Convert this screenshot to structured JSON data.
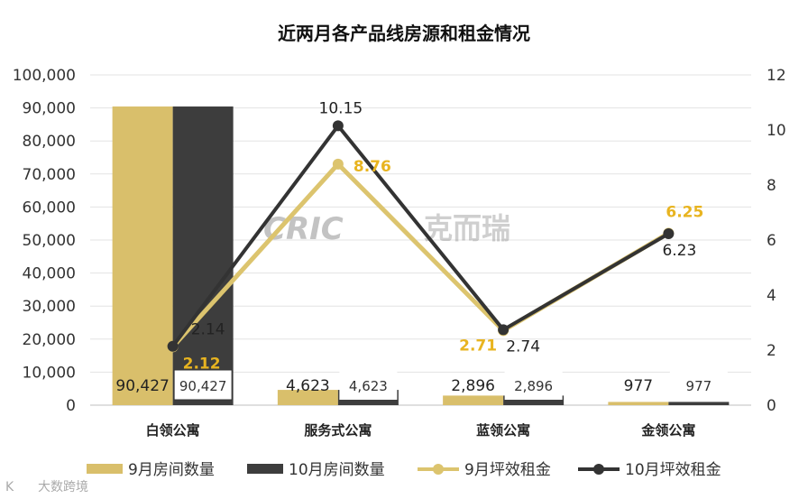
{
  "chart_data": {
    "type": "bar",
    "title": "近两月各产品线房源和租金情况",
    "categories": [
      "白领公寓",
      "服务式公寓",
      "蓝领公寓",
      "金领公寓"
    ],
    "ylim": [
      0,
      100000
    ],
    "y_ticks": [
      "0",
      "10,000",
      "20,000",
      "30,000",
      "40,000",
      "50,000",
      "60,000",
      "70,000",
      "80,000",
      "90,000",
      "100,000"
    ],
    "y2lim": [
      0,
      12
    ],
    "y2_ticks": [
      "0",
      "2",
      "4",
      "6",
      "8",
      "10",
      "12"
    ],
    "grid": true,
    "legend_position": "bottom",
    "series": [
      {
        "name": "9月房间数量",
        "type": "bar",
        "axis": "left",
        "color": "#d9bf6b",
        "values": [
          90427,
          4623,
          2896,
          977
        ],
        "labels": [
          "90,427",
          "4,623",
          "2,896",
          "977"
        ]
      },
      {
        "name": "10月房间数量",
        "type": "bar",
        "axis": "left",
        "color": "#3d3d3d",
        "values": [
          90427,
          4623,
          2896,
          977
        ],
        "labels": [
          "90,427",
          "4,623",
          "2,896",
          "977"
        ]
      },
      {
        "name": "9月坪效租金",
        "type": "line",
        "axis": "right",
        "color": "#dcc46e",
        "values": [
          2.12,
          8.76,
          2.71,
          6.25
        ],
        "labels": [
          "2.12",
          "8.76",
          "2.71",
          "6.25"
        ]
      },
      {
        "name": "10月坪效租金",
        "type": "line",
        "axis": "right",
        "color": "#333333",
        "values": [
          2.14,
          10.15,
          2.74,
          6.23
        ],
        "labels": [
          "2.14",
          "10.15",
          "2.74",
          "6.23"
        ]
      }
    ]
  },
  "watermark": {
    "logo_text": "CRIC",
    "logo_cn": "克而瑞",
    "bottom_text": "大数跨境",
    "bottom_prefix": "K"
  }
}
